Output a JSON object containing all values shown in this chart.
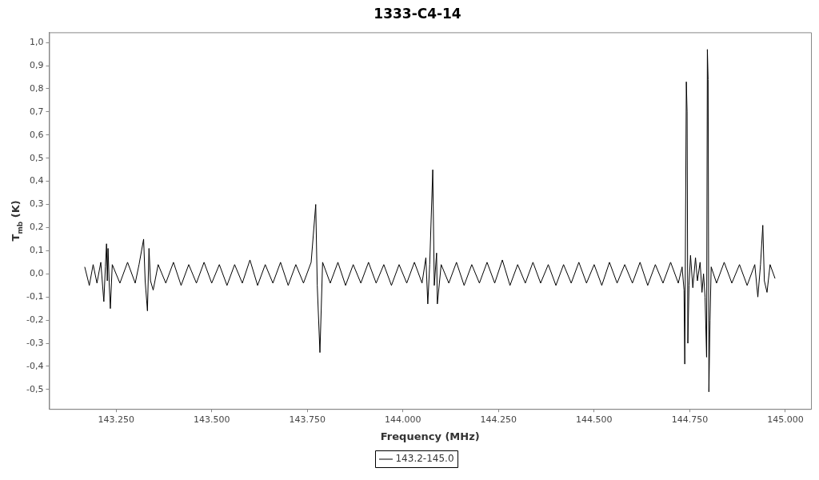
{
  "chart_data": {
    "type": "line",
    "title": "1333-C4-14",
    "xlabel": "Frequency (MHz)",
    "ylabel": "T$_{mb}$ (K)",
    "xlim": [
      143075,
      145067
    ],
    "ylim": [
      -0.584,
      1.044
    ],
    "xticks": [
      {
        "value": 143250,
        "label": "143.250"
      },
      {
        "value": 143500,
        "label": "143.500"
      },
      {
        "value": 143750,
        "label": "143.750"
      },
      {
        "value": 144000,
        "label": "144.000"
      },
      {
        "value": 144250,
        "label": "144.250"
      },
      {
        "value": 144500,
        "label": "144.500"
      },
      {
        "value": 144750,
        "label": "144.750"
      },
      {
        "value": 145000,
        "label": "145.000"
      }
    ],
    "yticks": [
      {
        "value": -0.5,
        "label": "-0,5"
      },
      {
        "value": -0.4,
        "label": "-0,4"
      },
      {
        "value": -0.3,
        "label": "-0,3"
      },
      {
        "value": -0.2,
        "label": "-0,2"
      },
      {
        "value": -0.1,
        "label": "-0,1"
      },
      {
        "value": 0,
        "label": "0,0"
      },
      {
        "value": 0.1,
        "label": "0,1"
      },
      {
        "value": 0.2,
        "label": "0,2"
      },
      {
        "value": 0.3,
        "label": "0,3"
      },
      {
        "value": 0.4,
        "label": "0,4"
      },
      {
        "value": 0.5,
        "label": "0,5"
      },
      {
        "value": 0.6,
        "label": "0,6"
      },
      {
        "value": 0.7,
        "label": "0,7"
      },
      {
        "value": 0.8,
        "label": "0,8"
      },
      {
        "value": 0.9,
        "label": "0,9"
      },
      {
        "value": 1,
        "label": "1,0"
      }
    ],
    "legend": "bottom",
    "marker": "none",
    "line_style": "solid",
    "series": [
      {
        "name": "143.2-145.0",
        "color": "#000000",
        "x": [
          143168,
          143180,
          143190,
          143200,
          143210,
          143218,
          143222,
          143225,
          143227,
          143229,
          143232,
          143235,
          143240,
          143260,
          143280,
          143300,
          143310,
          143322,
          143326,
          143332,
          143336,
          143340,
          143347,
          143360,
          143380,
          143400,
          143420,
          143440,
          143460,
          143480,
          143500,
          143520,
          143540,
          143560,
          143580,
          143600,
          143620,
          143640,
          143660,
          143680,
          143700,
          143720,
          143740,
          143760,
          143772,
          143776,
          143783,
          143790,
          143810,
          143830,
          143850,
          143870,
          143890,
          143910,
          143930,
          143950,
          143970,
          143990,
          144010,
          144030,
          144050,
          144060,
          144065,
          144070,
          144078,
          144082,
          144088,
          144090,
          144100,
          144120,
          144140,
          144160,
          144180,
          144200,
          144220,
          144240,
          144260,
          144280,
          144300,
          144320,
          144340,
          144360,
          144380,
          144400,
          144420,
          144440,
          144460,
          144480,
          144500,
          144520,
          144540,
          144560,
          144580,
          144600,
          144620,
          144640,
          144660,
          144680,
          144700,
          144720,
          144730,
          144735,
          144737,
          144741,
          144743,
          144745,
          144748,
          144752,
          144758,
          144765,
          144770,
          144777,
          144782,
          144786,
          144790,
          144794,
          144796,
          144798,
          144800,
          144803,
          144806,
          144820,
          144840,
          144860,
          144880,
          144900,
          144920,
          144928,
          144935,
          144941,
          144945,
          144952,
          144960,
          144973
        ],
        "values": [
          0.03,
          -0.05,
          0.04,
          -0.04,
          0.05,
          -0.12,
          0.03,
          0.13,
          -0.03,
          0.11,
          -0.04,
          -0.15,
          0.04,
          -0.04,
          0.05,
          -0.04,
          0.04,
          0.15,
          -0.03,
          -0.16,
          0.11,
          -0.03,
          -0.07,
          0.04,
          -0.04,
          0.05,
          -0.05,
          0.04,
          -0.04,
          0.05,
          -0.04,
          0.04,
          -0.05,
          0.04,
          -0.04,
          0.06,
          -0.05,
          0.04,
          -0.04,
          0.05,
          -0.05,
          0.04,
          -0.04,
          0.05,
          0.3,
          -0.05,
          -0.34,
          0.05,
          -0.04,
          0.05,
          -0.05,
          0.04,
          -0.04,
          0.05,
          -0.04,
          0.04,
          -0.05,
          0.04,
          -0.04,
          0.05,
          -0.04,
          0.07,
          -0.13,
          0.04,
          0.45,
          -0.05,
          0.09,
          -0.13,
          0.04,
          -0.04,
          0.05,
          -0.05,
          0.04,
          -0.04,
          0.05,
          -0.04,
          0.06,
          -0.05,
          0.04,
          -0.04,
          0.05,
          -0.04,
          0.04,
          -0.05,
          0.04,
          -0.04,
          0.05,
          -0.04,
          0.04,
          -0.05,
          0.05,
          -0.04,
          0.04,
          -0.04,
          0.05,
          -0.05,
          0.04,
          -0.04,
          0.05,
          -0.04,
          0.03,
          -0.07,
          -0.39,
          0.83,
          0.7,
          -0.3,
          -0.05,
          0.08,
          -0.06,
          0.07,
          -0.03,
          0.05,
          -0.08,
          0,
          -0.1,
          -0.36,
          0.97,
          0.84,
          -0.51,
          -0.2,
          0.03,
          -0.04,
          0.05,
          -0.04,
          0.04,
          -0.05,
          0.04,
          -0.1,
          0.04,
          0.21,
          -0.03,
          -0.08,
          0.04,
          -0.02
        ]
      }
    ]
  }
}
